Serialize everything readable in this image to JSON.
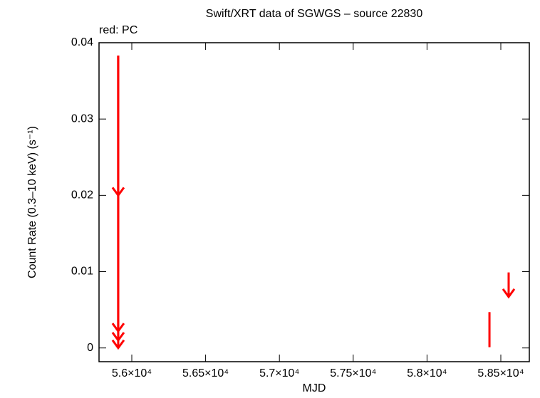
{
  "chart_data": {
    "type": "lightcurve",
    "title": "Swift/XRT data of SGWGS – source 22830",
    "subtitle": "red: PC",
    "x_label": "MJD",
    "y_label": "Count Rate (0.3–10 keV) (s⁻¹)",
    "color": "#ff0000",
    "xlim": [
      55778,
      58693
    ],
    "ylim": [
      -0.0018,
      0.04
    ],
    "xticks": [
      {
        "value": 56000,
        "label": "5.6×10⁴"
      },
      {
        "value": 56500,
        "label": "5.65×10⁴"
      },
      {
        "value": 57000,
        "label": "5.7×10⁴"
      },
      {
        "value": 57500,
        "label": "5.75×10⁴"
      },
      {
        "value": 58000,
        "label": "5.8×10⁴"
      },
      {
        "value": 58500,
        "label": "5.85×10⁴"
      }
    ],
    "yticks": [
      0,
      0.01,
      0.02,
      0.03,
      0.04
    ],
    "upper_limits": {
      "x": [
        55908,
        55908,
        55908,
        55908,
        58553
      ],
      "values": [
        0.0383,
        0.0383,
        0.0383,
        0.0383,
        0.0099
      ],
      "arrow_to": [
        0.02,
        0.0022,
        0.001,
        0.0,
        0.0067
      ]
    },
    "points": {
      "x": [
        58423
      ],
      "values": [
        0.0024
      ],
      "errors": [
        0.0023
      ]
    }
  }
}
